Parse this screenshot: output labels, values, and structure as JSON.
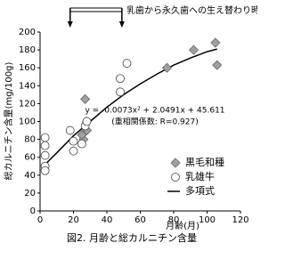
{
  "chart_data": {
    "type": "scatter",
    "title": "図2. 月齢と総カルニチン含量",
    "x_label": "月齢(月)",
    "y_label": "総カルニチン含量(mg/100g)",
    "xlim": [
      0,
      120
    ],
    "xticks": [
      0,
      20,
      40,
      60,
      80,
      100,
      120
    ],
    "ylim": [
      0,
      200
    ],
    "yticks": [
      0,
      20,
      40,
      60,
      80,
      100,
      120,
      140,
      160,
      180,
      200
    ],
    "grid": false,
    "legend": "lower right",
    "annotation": {
      "text": "乳歯から永久歯への生え替わり時期",
      "span": [
        18,
        49
      ]
    },
    "equation": [
      "y = -0.0073x² + 2.0491x + 45.611",
      "(重相関係数: R=0.927)"
    ],
    "series": [
      {
        "name": "黒毛和種",
        "style": "diamond",
        "color": "#a0a0a0",
        "x": [
          27,
          28,
          28,
          26,
          25,
          76,
          92,
          105,
          106
        ],
        "values": [
          125,
          100,
          90,
          80,
          85,
          160,
          180,
          188,
          163
        ]
      },
      {
        "name": "乳雄牛",
        "style": "circle",
        "color": "#ffffff",
        "x": [
          3,
          3,
          3,
          3,
          3,
          18,
          20,
          20,
          25,
          27,
          28,
          48,
          48,
          52
        ],
        "values": [
          82,
          73,
          62,
          50,
          45,
          90,
          78,
          67,
          75,
          95,
          100,
          133,
          148,
          165
        ]
      },
      {
        "name": "多項式",
        "style": "line",
        "color": "#000000",
        "x": [
          3,
          10,
          20,
          30,
          40,
          50,
          60,
          70,
          80,
          90,
          100,
          106
        ],
        "values": [
          52,
          65,
          84,
          100,
          116,
          130,
          142,
          153,
          163,
          171,
          178,
          181
        ]
      }
    ]
  }
}
